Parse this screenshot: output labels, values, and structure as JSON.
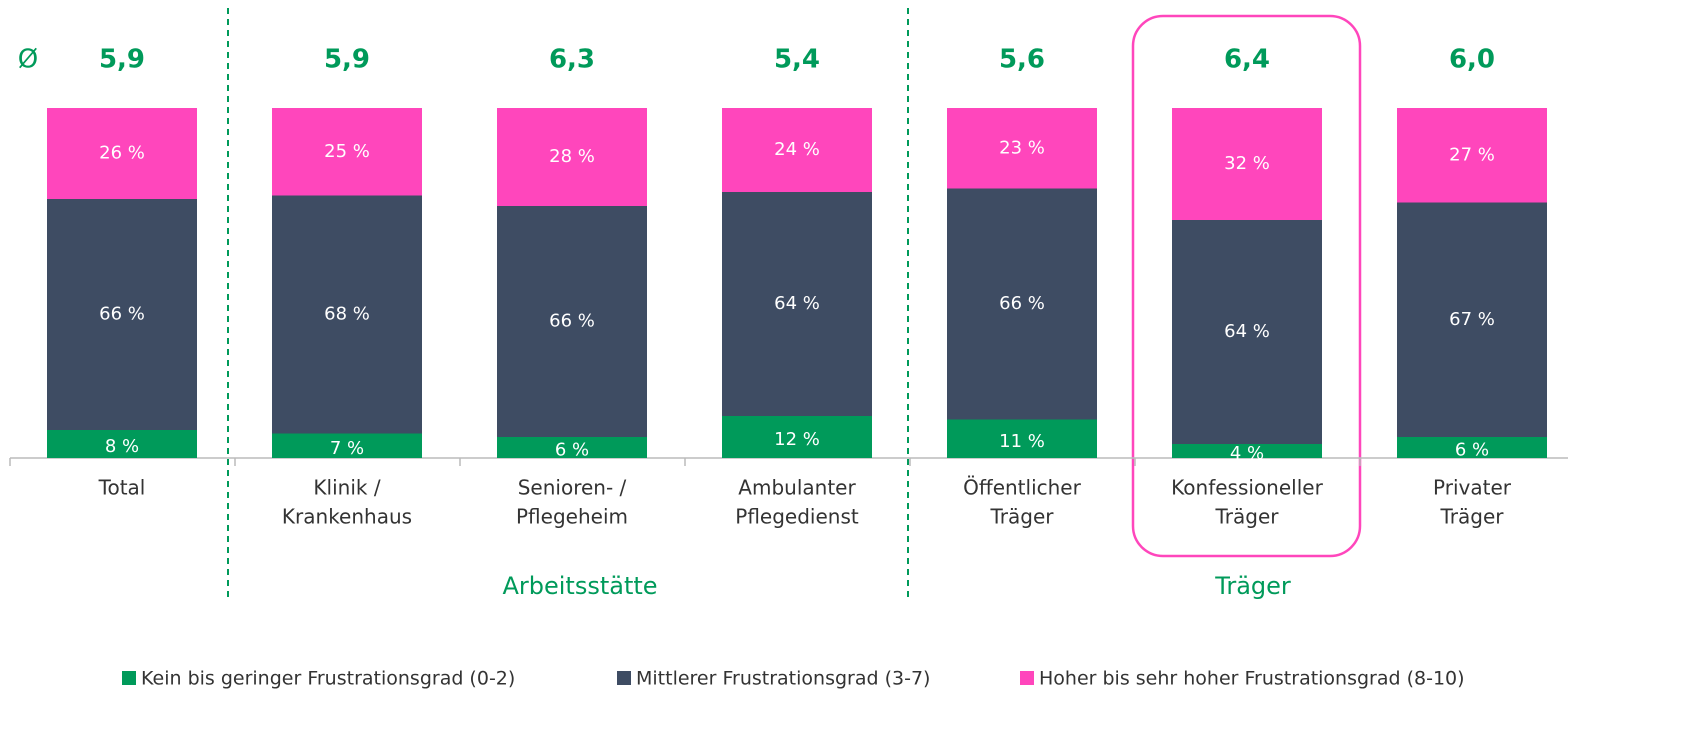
{
  "chart_data": {
    "type": "stacked_bar",
    "average_symbol": "Ø",
    "averages": [
      {
        "value": 5.9,
        "label": "5,9"
      },
      {
        "value": 5.9,
        "label": "5,9"
      },
      {
        "value": 6.3,
        "label": "6,3"
      },
      {
        "value": 5.4,
        "label": "5,4"
      },
      {
        "value": 5.6,
        "label": "5,6"
      },
      {
        "value": 6.4,
        "label": "6,4"
      },
      {
        "value": 6.0,
        "label": "6,0"
      }
    ],
    "categories": [
      [
        "Total"
      ],
      [
        "Klinik /",
        "Krankenhaus"
      ],
      [
        "Senioren- /",
        "Pflegeheim"
      ],
      [
        "Ambulanter",
        "Pflegedienst"
      ],
      [
        "Öffentlicher",
        "Träger"
      ],
      [
        "Konfessioneller",
        "Träger"
      ],
      [
        "Privater",
        "Träger"
      ]
    ],
    "groups": [
      "Arbeitsstätte",
      "Träger"
    ],
    "series": [
      {
        "name": "Kein bis geringer Frustrationsgrad (0-2)",
        "color": "#009a5a",
        "values": [
          8,
          7,
          6,
          12,
          11,
          4,
          6
        ],
        "value_labels": [
          "8 %",
          "7 %",
          "6 %",
          "12 %",
          "11 %",
          "4 %",
          "6 %"
        ]
      },
      {
        "name": "Mittlerer Frustrationsgrad (3-7)",
        "color": "#3e4c63",
        "values": [
          66,
          68,
          66,
          64,
          66,
          64,
          67
        ],
        "value_labels": [
          "66 %",
          "68 %",
          "66 %",
          "64 %",
          "66 %",
          "64 %",
          "67 %"
        ]
      },
      {
        "name": "Hoher bis sehr hoher Frustrationsgrad (8-10)",
        "color": "#ff46bc",
        "values": [
          26,
          25,
          28,
          24,
          23,
          32,
          27
        ],
        "value_labels": [
          "26 %",
          "25 %",
          "28 %",
          "24 %",
          "23 %",
          "32 %",
          "27 %"
        ]
      }
    ]
  }
}
